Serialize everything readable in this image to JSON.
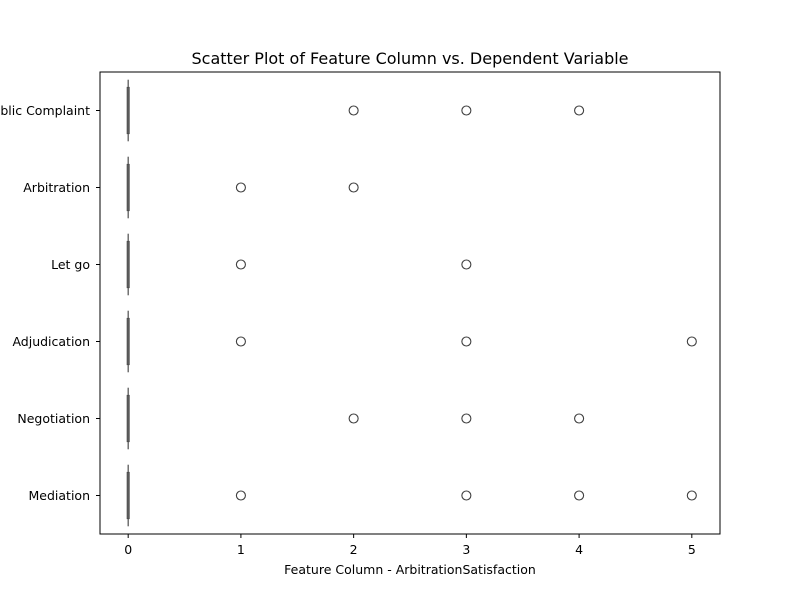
{
  "chart_data": {
    "type": "scatter",
    "title": "Scatter Plot of Feature Column vs. Dependent Variable",
    "xlabel": "Feature Column - ArbitrationSatisfaction",
    "ylabel": "",
    "xlim": [
      -0.25,
      5.25
    ],
    "x_ticks": [
      0,
      1,
      2,
      3,
      4,
      5
    ],
    "categories": [
      "Public Complaint",
      "Arbitration",
      "Let go",
      "Adjudication",
      "Negotiation",
      "Mediation"
    ],
    "grid": false,
    "box_median": 0,
    "outliers": [
      {
        "category": "Public Complaint",
        "x": [
          2,
          3,
          4
        ]
      },
      {
        "category": "Arbitration",
        "x": [
          1,
          2
        ]
      },
      {
        "category": "Let go",
        "x": [
          1,
          3
        ]
      },
      {
        "category": "Adjudication",
        "x": [
          1,
          3,
          5
        ]
      },
      {
        "category": "Negotiation",
        "x": [
          2,
          3,
          4
        ]
      },
      {
        "category": "Mediation",
        "x": [
          1,
          3,
          4,
          5
        ]
      }
    ],
    "colors": {
      "marker_edge": "#3f3f3f",
      "box": "#4d4d4d",
      "axis": "#000000"
    }
  }
}
